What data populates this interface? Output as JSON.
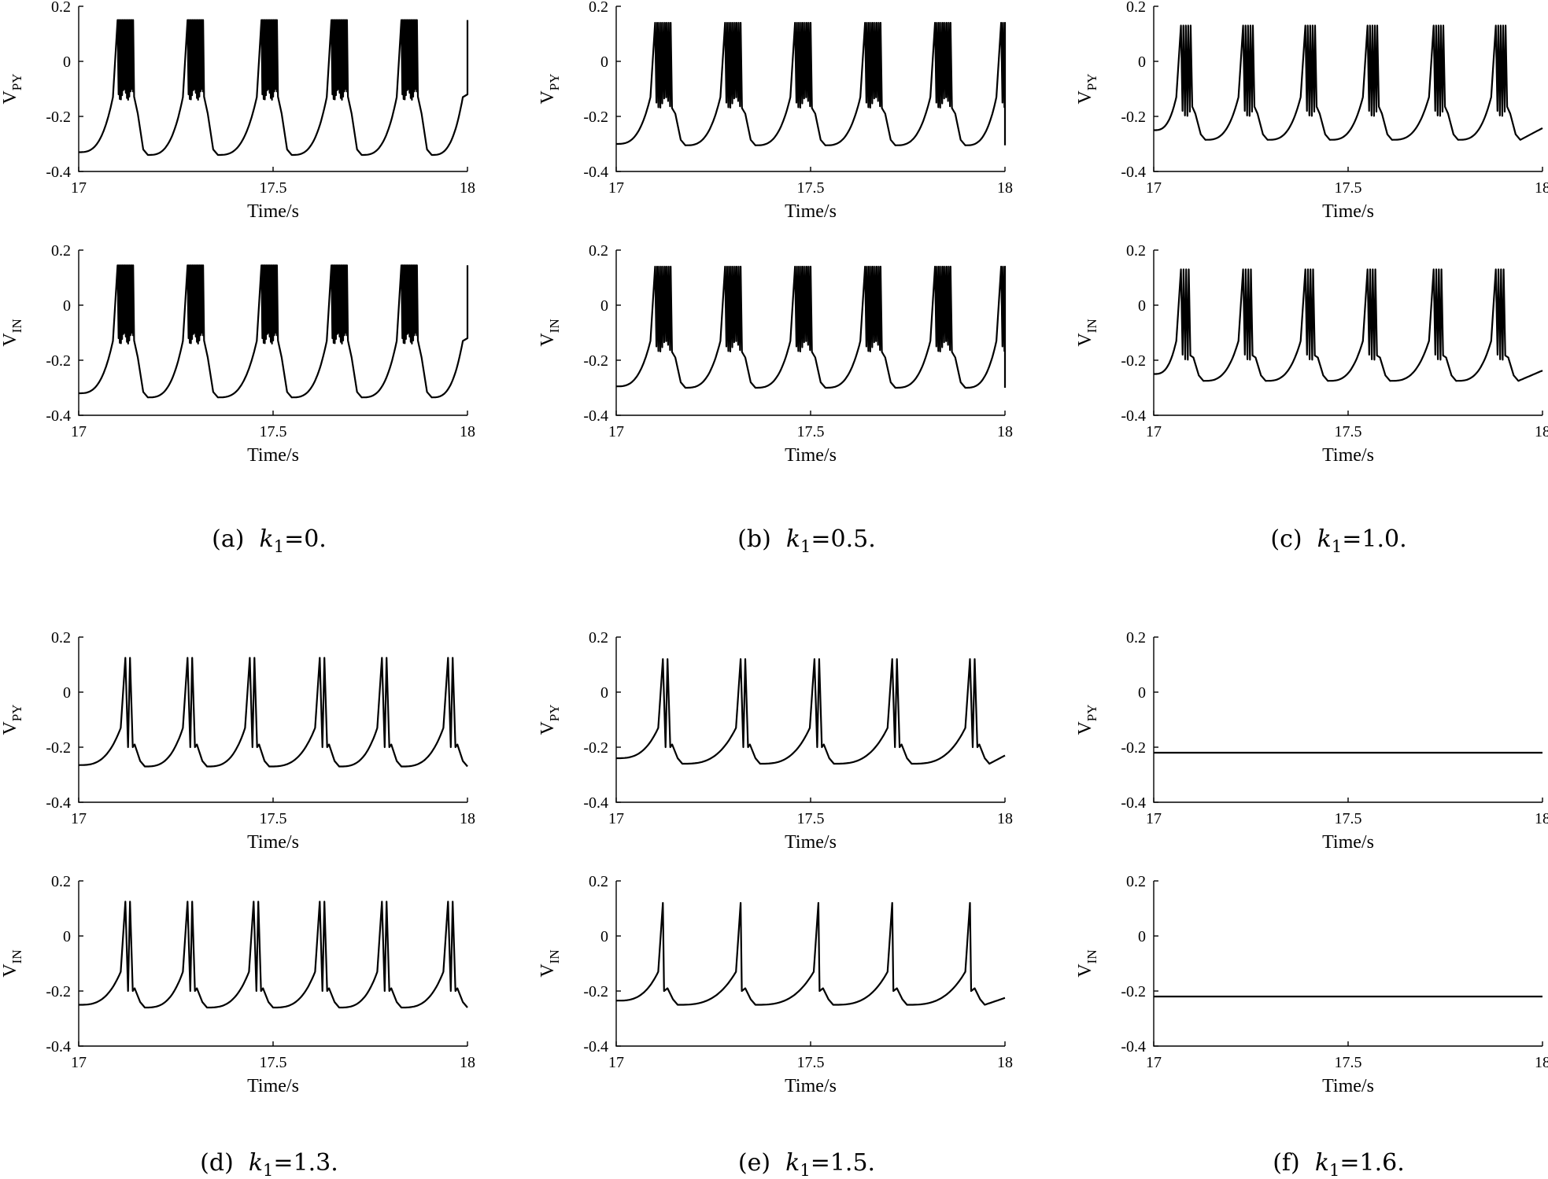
{
  "figure": {
    "panels": [
      {
        "id": "a",
        "caption": {
          "prefix": "(a)",
          "param": "k",
          "param_sub": "1",
          "value": "=0."
        },
        "traces": [
          {
            "ylabel": "V",
            "ylabel_sub": "PY",
            "xlabel": "Time/s"
          },
          {
            "ylabel": "V",
            "ylabel_sub": "IN",
            "xlabel": "Time/s"
          }
        ]
      },
      {
        "id": "b",
        "caption": {
          "prefix": "(b)",
          "param": "k",
          "param_sub": "1",
          "value": "=0.5."
        },
        "traces": [
          {
            "ylabel": "V",
            "ylabel_sub": "PY",
            "xlabel": "Time/s"
          },
          {
            "ylabel": "V",
            "ylabel_sub": "IN",
            "xlabel": "Time/s"
          }
        ]
      },
      {
        "id": "c",
        "caption": {
          "prefix": "(c)",
          "param": "k",
          "param_sub": "1",
          "value": "=1.0."
        },
        "traces": [
          {
            "ylabel": "V",
            "ylabel_sub": "PY",
            "xlabel": "Time/s"
          },
          {
            "ylabel": "V",
            "ylabel_sub": "IN",
            "xlabel": "Time/s"
          }
        ]
      },
      {
        "id": "d",
        "caption": {
          "prefix": "(d)",
          "param": "k",
          "param_sub": "1",
          "value": "=1.3."
        },
        "traces": [
          {
            "ylabel": "V",
            "ylabel_sub": "PY",
            "xlabel": "Time/s"
          },
          {
            "ylabel": "V",
            "ylabel_sub": "IN",
            "xlabel": "Time/s"
          }
        ]
      },
      {
        "id": "e",
        "caption": {
          "prefix": "(e)",
          "param": "k",
          "param_sub": "1",
          "value": "=1.5."
        },
        "traces": [
          {
            "ylabel": "V",
            "ylabel_sub": "PY",
            "xlabel": "Time/s"
          },
          {
            "ylabel": "V",
            "ylabel_sub": "IN",
            "xlabel": "Time/s"
          }
        ]
      },
      {
        "id": "f",
        "caption": {
          "prefix": "(f)",
          "param": "k",
          "param_sub": "1",
          "value": "=1.6."
        },
        "traces": [
          {
            "ylabel": "V",
            "ylabel_sub": "PY",
            "xlabel": "Time/s"
          },
          {
            "ylabel": "V",
            "ylabel_sub": "IN",
            "xlabel": "Time/s"
          }
        ]
      }
    ]
  },
  "chart_data": [
    {
      "panel": "a",
      "signal": "V_PY",
      "type": "line",
      "xlim": [
        17,
        18
      ],
      "ylim": [
        -0.4,
        0.2
      ],
      "xticks": [
        "17",
        "17.5",
        "18"
      ],
      "yticks": [
        "-0.4",
        "-0.2",
        "0",
        "0.2"
      ],
      "xlabel": "Time/s",
      "ylabel": "V_PY",
      "grid": false,
      "pattern": "periodic-burst",
      "start_value": -0.33,
      "trough": -0.34,
      "spike_peak": 0.15,
      "burst_floor": -0.12,
      "burst_onsets": [
        17.1,
        17.28,
        17.47,
        17.65,
        17.83,
        18.0
      ],
      "spikes_per_burst": 14,
      "burst_duration": 0.04
    },
    {
      "panel": "a",
      "signal": "V_IN",
      "type": "line",
      "xlim": [
        17,
        18
      ],
      "ylim": [
        -0.4,
        0.2
      ],
      "xticks": [
        "17",
        "17.5",
        "18"
      ],
      "yticks": [
        "-0.4",
        "-0.2",
        "0",
        "0.2"
      ],
      "xlabel": "Time/s",
      "ylabel": "V_IN",
      "grid": false,
      "pattern": "periodic-burst",
      "start_value": -0.32,
      "trough": -0.335,
      "spike_peak": 0.145,
      "burst_floor": -0.12,
      "burst_onsets": [
        17.1,
        17.28,
        17.47,
        17.65,
        17.83,
        18.0
      ],
      "spikes_per_burst": 14,
      "burst_duration": 0.04
    },
    {
      "panel": "b",
      "signal": "V_PY",
      "type": "line",
      "xlim": [
        17,
        18
      ],
      "ylim": [
        -0.4,
        0.2
      ],
      "xticks": [
        "17",
        "17.5",
        "18"
      ],
      "yticks": [
        "-0.4",
        "-0.2",
        "0",
        "0.2"
      ],
      "xlabel": "Time/s",
      "ylabel": "V_PY",
      "grid": false,
      "pattern": "periodic-burst",
      "start_value": -0.3,
      "trough": -0.305,
      "spike_peak": 0.14,
      "burst_floor": -0.15,
      "burst_onsets": [
        17.1,
        17.28,
        17.46,
        17.64,
        17.82,
        17.99
      ],
      "spikes_per_burst": 9,
      "burst_duration": 0.04
    },
    {
      "panel": "b",
      "signal": "V_IN",
      "type": "line",
      "xlim": [
        17,
        18
      ],
      "ylim": [
        -0.4,
        0.2
      ],
      "xticks": [
        "17",
        "17.5",
        "18"
      ],
      "yticks": [
        "-0.4",
        "-0.2",
        "0",
        "0.2"
      ],
      "xlabel": "Time/s",
      "ylabel": "V_IN",
      "grid": false,
      "pattern": "periodic-burst",
      "start_value": -0.295,
      "trough": -0.3,
      "spike_peak": 0.14,
      "burst_floor": -0.15,
      "burst_onsets": [
        17.1,
        17.28,
        17.46,
        17.64,
        17.82,
        17.99
      ],
      "spikes_per_burst": 9,
      "burst_duration": 0.04
    },
    {
      "panel": "c",
      "signal": "V_PY",
      "type": "line",
      "xlim": [
        17,
        18
      ],
      "ylim": [
        -0.4,
        0.2
      ],
      "xticks": [
        "17",
        "17.5",
        "18"
      ],
      "yticks": [
        "-0.4",
        "-0.2",
        "0",
        "0.2"
      ],
      "xlabel": "Time/s",
      "ylabel": "V_PY",
      "grid": false,
      "pattern": "periodic-burst",
      "start_value": -0.25,
      "trough": -0.285,
      "spike_peak": 0.13,
      "burst_floor": -0.18,
      "burst_onsets": [
        17.07,
        17.23,
        17.39,
        17.55,
        17.72,
        17.88
      ],
      "spikes_per_burst": 5,
      "burst_duration": 0.025
    },
    {
      "panel": "c",
      "signal": "V_IN",
      "type": "line",
      "xlim": [
        17,
        18
      ],
      "ylim": [
        -0.4,
        0.2
      ],
      "xticks": [
        "17",
        "17.5",
        "18"
      ],
      "yticks": [
        "-0.4",
        "-0.2",
        "0",
        "0.2"
      ],
      "xlabel": "Time/s",
      "ylabel": "V_IN",
      "grid": false,
      "pattern": "periodic-burst",
      "start_value": -0.25,
      "trough": -0.275,
      "spike_peak": 0.13,
      "burst_floor": -0.18,
      "burst_onsets": [
        17.07,
        17.23,
        17.39,
        17.55,
        17.72,
        17.88
      ],
      "spikes_per_burst": 4,
      "burst_duration": 0.02
    },
    {
      "panel": "d",
      "signal": "V_PY",
      "type": "line",
      "xlim": [
        17,
        18
      ],
      "ylim": [
        -0.4,
        0.2
      ],
      "xticks": [
        "17",
        "17.5",
        "18"
      ],
      "yticks": [
        "-0.4",
        "-0.2",
        "0",
        "0.2"
      ],
      "xlabel": "Time/s",
      "ylabel": "V_PY",
      "grid": false,
      "pattern": "periodic-burst",
      "start_value": -0.265,
      "trough": -0.27,
      "spike_peak": 0.125,
      "burst_floor": -0.2,
      "burst_onsets": [
        17.12,
        17.28,
        17.44,
        17.62,
        17.78,
        17.95
      ],
      "spikes_per_burst": 2,
      "burst_duration": 0.012
    },
    {
      "panel": "d",
      "signal": "V_IN",
      "type": "line",
      "xlim": [
        17,
        18
      ],
      "ylim": [
        -0.4,
        0.2
      ],
      "xticks": [
        "17",
        "17.5",
        "18"
      ],
      "yticks": [
        "-0.4",
        "-0.2",
        "0",
        "0.2"
      ],
      "xlabel": "Time/s",
      "ylabel": "V_IN",
      "grid": false,
      "pattern": "periodic-burst",
      "start_value": -0.25,
      "trough": -0.26,
      "spike_peak": 0.125,
      "burst_floor": -0.2,
      "burst_onsets": [
        17.12,
        17.28,
        17.45,
        17.62,
        17.78,
        17.95
      ],
      "spikes_per_burst": 2,
      "burst_duration": 0.012
    },
    {
      "panel": "e",
      "signal": "V_PY",
      "type": "line",
      "xlim": [
        17,
        18
      ],
      "ylim": [
        -0.4,
        0.2
      ],
      "xticks": [
        "17",
        "17.5",
        "18"
      ],
      "yticks": [
        "-0.4",
        "-0.2",
        "0",
        "0.2"
      ],
      "xlabel": "Time/s",
      "ylabel": "V_PY",
      "grid": false,
      "pattern": "periodic-burst",
      "start_value": -0.24,
      "trough": -0.26,
      "spike_peak": 0.12,
      "burst_floor": -0.2,
      "burst_onsets": [
        17.12,
        17.32,
        17.51,
        17.71,
        17.91
      ],
      "spikes_per_burst": 2,
      "burst_duration": 0.012
    },
    {
      "panel": "e",
      "signal": "V_IN",
      "type": "line",
      "xlim": [
        17,
        18
      ],
      "ylim": [
        -0.4,
        0.2
      ],
      "xticks": [
        "17",
        "17.5",
        "18"
      ],
      "yticks": [
        "-0.4",
        "-0.2",
        "0",
        "0.2"
      ],
      "xlabel": "Time/s",
      "ylabel": "V_IN",
      "grid": false,
      "pattern": "periodic-burst",
      "start_value": -0.235,
      "trough": -0.25,
      "spike_peak": 0.12,
      "burst_floor": -0.2,
      "burst_onsets": [
        17.12,
        17.32,
        17.52,
        17.71,
        17.91
      ],
      "spikes_per_burst": 1,
      "burst_duration": 0.0
    },
    {
      "panel": "f",
      "signal": "V_PY",
      "type": "line",
      "xlim": [
        17,
        18
      ],
      "ylim": [
        -0.4,
        0.2
      ],
      "xticks": [
        "17",
        "17.5",
        "18"
      ],
      "yticks": [
        "-0.4",
        "-0.2",
        "0",
        "0.2"
      ],
      "xlabel": "Time/s",
      "ylabel": "V_PY",
      "grid": false,
      "pattern": "constant",
      "value": -0.22
    },
    {
      "panel": "f",
      "signal": "V_IN",
      "type": "line",
      "xlim": [
        17,
        18
      ],
      "ylim": [
        -0.4,
        0.2
      ],
      "xticks": [
        "17",
        "17.5",
        "18"
      ],
      "yticks": [
        "-0.4",
        "-0.2",
        "0",
        "0.2"
      ],
      "xlabel": "Time/s",
      "ylabel": "V_IN",
      "grid": false,
      "pattern": "constant",
      "value": -0.22
    }
  ]
}
